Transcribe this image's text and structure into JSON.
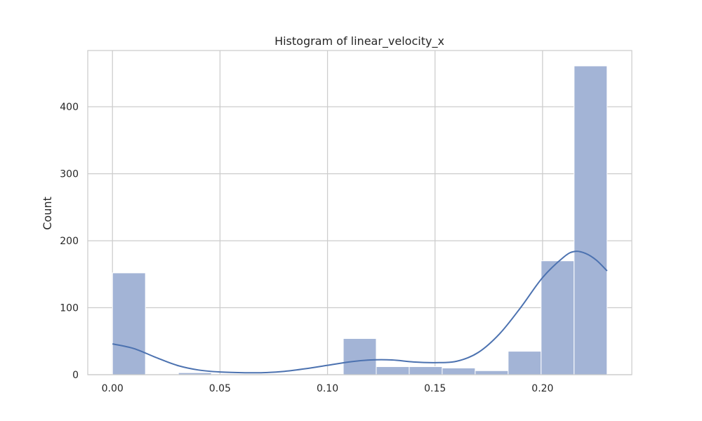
{
  "chart_data": {
    "type": "histogram",
    "title": "Histogram of linear_velocity_x",
    "xlabel": "",
    "ylabel": "Count",
    "xlim": [
      -0.0115,
      0.2415
    ],
    "ylim": [
      0,
      484
    ],
    "grid": true,
    "x_ticks": [
      0.0,
      0.05,
      0.1,
      0.15,
      0.2
    ],
    "x_tick_labels": [
      "0.00",
      "0.05",
      "0.10",
      "0.15",
      "0.20"
    ],
    "y_ticks": [
      0,
      100,
      200,
      300,
      400
    ],
    "y_tick_labels": [
      "0",
      "100",
      "200",
      "300",
      "400"
    ],
    "bin_width": 0.01533,
    "bins": [
      {
        "x0": 0.0,
        "count": 152
      },
      {
        "x0": 0.01533,
        "count": 0
      },
      {
        "x0": 0.03067,
        "count": 3
      },
      {
        "x0": 0.046,
        "count": 0
      },
      {
        "x0": 0.06133,
        "count": 0
      },
      {
        "x0": 0.07667,
        "count": 0
      },
      {
        "x0": 0.092,
        "count": 0
      },
      {
        "x0": 0.10733,
        "count": 54
      },
      {
        "x0": 0.12267,
        "count": 12
      },
      {
        "x0": 0.138,
        "count": 12
      },
      {
        "x0": 0.15333,
        "count": 10
      },
      {
        "x0": 0.16867,
        "count": 6
      },
      {
        "x0": 0.184,
        "count": 35
      },
      {
        "x0": 0.19933,
        "count": 170
      },
      {
        "x0": 0.21467,
        "count": 461
      }
    ],
    "kde": {
      "x": [
        0.0,
        0.01,
        0.02,
        0.03,
        0.04,
        0.05,
        0.06,
        0.07,
        0.08,
        0.09,
        0.1,
        0.11,
        0.12,
        0.13,
        0.14,
        0.15,
        0.16,
        0.17,
        0.18,
        0.19,
        0.2,
        0.21,
        0.215,
        0.22,
        0.225,
        0.23
      ],
      "y": [
        46,
        39,
        26,
        14,
        7,
        4,
        3,
        3,
        5,
        9,
        14,
        19,
        22,
        22,
        19,
        18,
        20,
        33,
        61,
        101,
        145,
        176,
        184,
        181,
        171,
        155
      ]
    },
    "colors": {
      "bar_fill": "#a3b4d6",
      "bar_edge": "#ffffff",
      "kde_line": "#4c72b0",
      "grid": "#cccccc",
      "frame": "#cccccc"
    }
  }
}
